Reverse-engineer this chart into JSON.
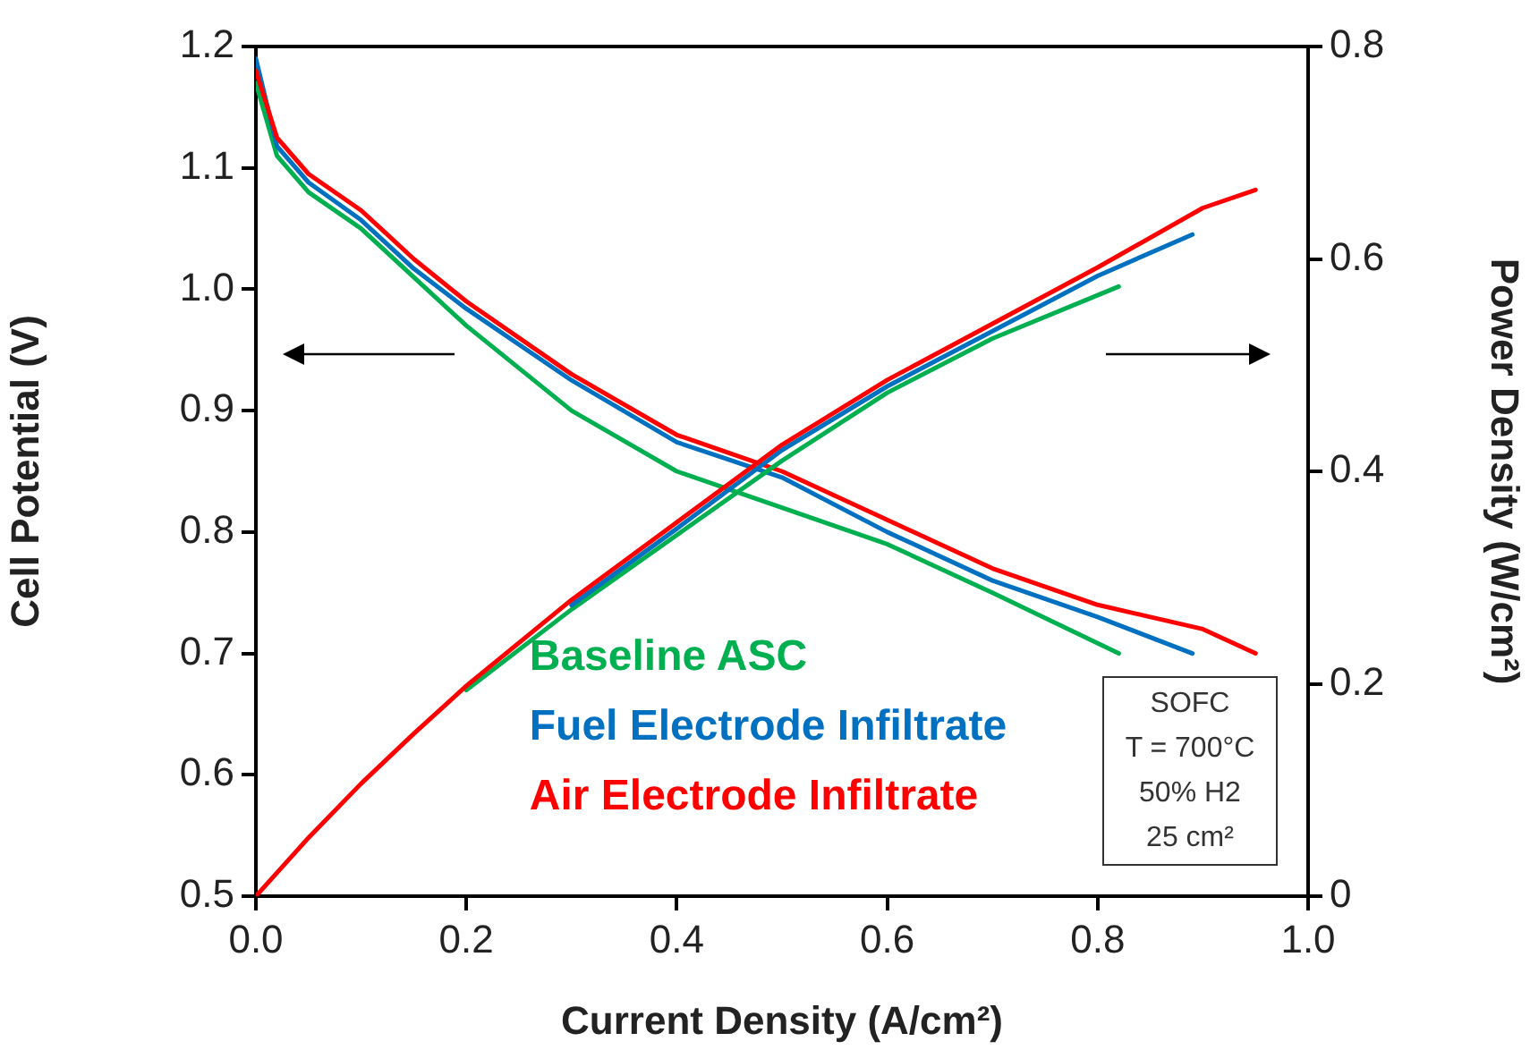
{
  "chart_data": {
    "type": "line",
    "xlabel": "Current Density (A/cm²)",
    "ylabel": "Cell Potential (V)",
    "y2label": "Power Density (W/cm²)",
    "xlim": [
      0,
      1
    ],
    "xticks": [
      {
        "value": 0,
        "label": "0.0"
      },
      {
        "value": 0.2,
        "label": "0.2"
      },
      {
        "value": 0.4,
        "label": "0.4"
      },
      {
        "value": 0.6,
        "label": "0.6"
      },
      {
        "value": 0.8,
        "label": "0.8"
      },
      {
        "value": 1,
        "label": "1.0"
      }
    ],
    "ylim": [
      0.5,
      1.2
    ],
    "yticks": [
      0.5,
      0.6,
      0.7,
      0.8,
      0.9,
      {
        "value": 1,
        "label": "1.0"
      },
      1.1,
      1.2
    ],
    "y2lim": [
      0,
      0.8
    ],
    "y2ticks": [
      0,
      0.2,
      0.4,
      0.6,
      0.8
    ],
    "grid": false,
    "legend": "bottom",
    "marker": "none",
    "line_style": "solid",
    "annotations": [
      "SOFC",
      "T = 700°C",
      "50% H2",
      "25 cm²"
    ],
    "series": [
      {
        "name": "Baseline ASC",
        "color": "#00b050",
        "x": [
          0,
          0.02,
          0.05,
          0.1,
          0.15,
          0.2,
          0.3,
          0.4,
          0.5,
          0.6,
          0.7,
          0.82
        ],
        "values": [
          1.17,
          1.11,
          1.08,
          1.05,
          1.01,
          0.97,
          0.9,
          0.85,
          0.82,
          0.79,
          0.75,
          0.7
        ]
      },
      {
        "name": "Fuel Electrode Infiltrate",
        "color": "#0070c0",
        "x": [
          0,
          0.02,
          0.05,
          0.1,
          0.15,
          0.2,
          0.3,
          0.4,
          0.5,
          0.6,
          0.7,
          0.8,
          0.89
        ],
        "values": [
          1.19,
          1.118,
          1.088,
          1.057,
          1.017,
          0.984,
          0.925,
          0.874,
          0.845,
          0.8,
          0.76,
          0.73,
          0.7
        ]
      },
      {
        "name": "Air Electrode Infiltrate",
        "color": "#ff0000",
        "x": [
          0,
          0.02,
          0.05,
          0.1,
          0.15,
          0.2,
          0.3,
          0.4,
          0.5,
          0.6,
          0.7,
          0.8,
          0.9,
          0.95
        ],
        "values": [
          1.18,
          1.125,
          1.095,
          1.065,
          1.025,
          0.99,
          0.93,
          0.88,
          0.85,
          0.81,
          0.77,
          0.74,
          0.72,
          0.7
        ]
      },
      {
        "color": "#00b050",
        "axis": "y2",
        "x": [
          0.2,
          0.3,
          0.4,
          0.5,
          0.6,
          0.7,
          0.82
        ],
        "values": [
          0.194,
          0.27,
          0.34,
          0.41,
          0.474,
          0.525,
          0.574
        ]
      },
      {
        "color": "#0070c0",
        "axis": "y2",
        "x": [
          0.3,
          0.4,
          0.5,
          0.6,
          0.7,
          0.8,
          0.89
        ],
        "values": [
          0.274,
          0.346,
          0.42,
          0.48,
          0.532,
          0.584,
          0.623
        ]
      },
      {
        "color": "#ff0000",
        "axis": "y2",
        "x": [
          0,
          0.02,
          0.05,
          0.1,
          0.15,
          0.2,
          0.3,
          0.4,
          0.5,
          0.6,
          0.7,
          0.8,
          0.9,
          0.95
        ],
        "values": [
          0,
          0.022,
          0.055,
          0.106,
          0.153,
          0.198,
          0.279,
          0.352,
          0.425,
          0.486,
          0.539,
          0.592,
          0.648,
          0.665
        ]
      }
    ]
  }
}
